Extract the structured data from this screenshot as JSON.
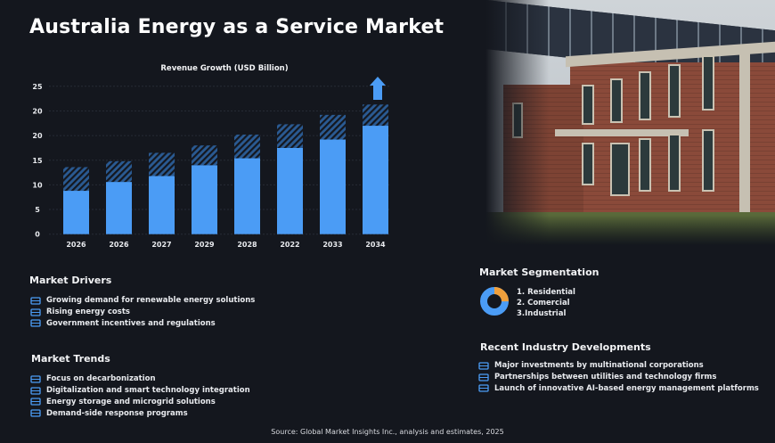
{
  "title": "Australia Energy as a Service Market",
  "chart_data": {
    "type": "bar",
    "stacked": true,
    "title": "Revenue Growth (USD Billion)",
    "categories": [
      "2026",
      "2026",
      "2027",
      "2029",
      "2028",
      "2022",
      "2033",
      "2034"
    ],
    "y_tick_labels": [
      "0",
      "5",
      "10",
      "15",
      "20",
      "20",
      "25"
    ],
    "ylim": [
      0,
      30
    ],
    "series": [
      {
        "values": [
          8.8,
          10.6,
          11.8,
          14.0,
          15.4,
          17.5,
          19.2,
          22.0
        ],
        "style": "solid",
        "color": "#4b9cf5"
      },
      {
        "values": [
          4.8,
          4.2,
          4.7,
          4.0,
          4.8,
          4.8,
          5.0,
          4.3
        ],
        "style": "hatched",
        "color": "#2a5a92"
      }
    ],
    "annotation": "up-arrow-icon above last bar",
    "grid": true
  },
  "drivers": {
    "heading": "Market Drivers",
    "items": [
      {
        "icon": "solar-panel-icon",
        "label": "Growing demand for renewable energy solutions"
      },
      {
        "icon": "coin-search-icon",
        "label": "Rising energy costs"
      },
      {
        "icon": "government-icon",
        "label": "Government incentives and regulations"
      }
    ]
  },
  "trends": {
    "heading": "Market Trends",
    "items": [
      {
        "icon": "wind-turbine-icon",
        "label": "Focus on decarbonization"
      },
      {
        "icon": "circuit-icon",
        "label": "Digitalization and smart technology integration"
      },
      {
        "icon": "battery-grid-icon",
        "label": "Energy storage and microgrid solutions"
      },
      {
        "icon": "building-icon",
        "label": "Demand-side response programs"
      }
    ]
  },
  "segmentation": {
    "heading": "Market Segmentation",
    "items": [
      "1. Residential",
      "2. Comercial",
      "3.Industrial"
    ],
    "donut": [
      {
        "share": 75,
        "color": "#4b9cf5"
      },
      {
        "share": 25,
        "color": "#f0a03c"
      }
    ]
  },
  "developments": {
    "heading": "Recent Industry Developments",
    "items": [
      {
        "icon": "battery-icon",
        "label": "Major investments by multinational corporations"
      },
      {
        "icon": "gear-chip-icon",
        "label": "Partnerships between utilities and technology firms"
      },
      {
        "icon": "list-icon",
        "label": "Launch of innovative AI-based energy management platforms"
      }
    ]
  },
  "source": "Source: Global Market Insights Inc., analysis and estimates, 2025"
}
